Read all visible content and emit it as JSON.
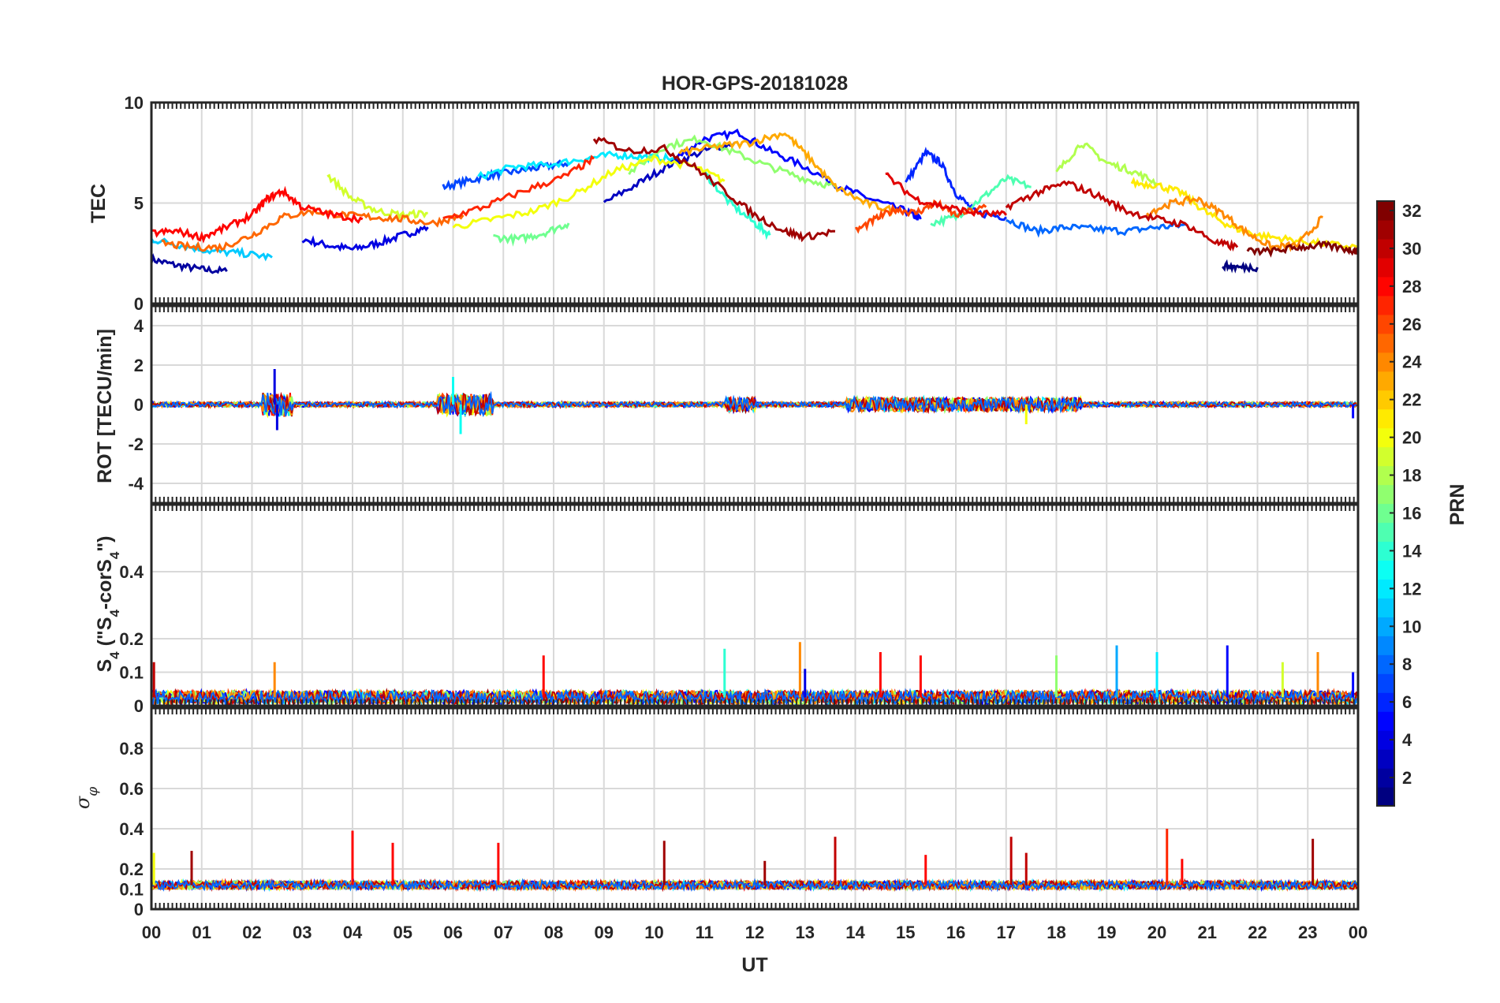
{
  "chart_data": {
    "title": "HOR-GPS-20181028",
    "xlabel": "UT",
    "x_ticks": [
      "00",
      "01",
      "02",
      "03",
      "04",
      "05",
      "06",
      "07",
      "08",
      "09",
      "10",
      "11",
      "12",
      "13",
      "14",
      "15",
      "16",
      "17",
      "18",
      "19",
      "20",
      "21",
      "22",
      "23",
      "00"
    ],
    "xlim": [
      0,
      24
    ],
    "grid": true,
    "colorbar": {
      "label": "PRN",
      "range": [
        1,
        32
      ],
      "ticks": [
        2,
        4,
        6,
        8,
        10,
        12,
        14,
        16,
        18,
        20,
        22,
        24,
        26,
        28,
        30,
        32
      ],
      "colormap": "jet"
    },
    "panels": [
      {
        "type": "line",
        "ylabel": "TEC",
        "ylim": [
          0,
          10
        ],
        "yticks": [
          0,
          5,
          10
        ],
        "series": [
          {
            "prn": 2,
            "x": [
              0,
              0.5,
              1,
              1.5
            ],
            "y": [
              2.2,
              1.9,
              1.7,
              1.6
            ]
          },
          {
            "prn": 4,
            "x": [
              3.0,
              3.5,
              4.0,
              4.5,
              5.0,
              5.5
            ],
            "y": [
              3.2,
              2.9,
              2.7,
              3.0,
              3.4,
              3.8
            ]
          },
          {
            "prn": 7,
            "x": [
              5.8,
              6.3,
              6.8,
              7.3,
              7.8,
              8.3
            ],
            "y": [
              5.8,
              6.1,
              6.4,
              6.6,
              6.8,
              7.0
            ]
          },
          {
            "prn": 5,
            "x": [
              10.3,
              11,
              11.7,
              12.3,
              13,
              13.7,
              14.3,
              15,
              15.3
            ],
            "y": [
              7.0,
              8.2,
              8.5,
              7.6,
              6.8,
              5.8,
              5.2,
              4.6,
              4.2
            ]
          },
          {
            "prn": 3,
            "x": [
              9.0,
              9.7,
              10.3,
              11.0,
              11.6
            ],
            "y": [
              5.0,
              6.0,
              6.9,
              7.6,
              8.0
            ]
          },
          {
            "prn": 6,
            "x": [
              15.0,
              15.4,
              15.7,
              16.0,
              16.4,
              17.0
            ],
            "y": [
              6.0,
              7.5,
              7.0,
              5.5,
              4.5,
              4.3
            ]
          },
          {
            "prn": 8,
            "x": [
              17.0,
              17.6,
              18.2,
              18.8,
              19.4,
              20.0,
              20.6
            ],
            "y": [
              4.2,
              3.6,
              3.8,
              3.7,
              3.6,
              3.8,
              3.9
            ]
          },
          {
            "prn": 11,
            "x": [
              0,
              0.6,
              1.2,
              1.8,
              2.4
            ],
            "y": [
              3.2,
              2.9,
              2.6,
              2.5,
              2.3
            ]
          },
          {
            "prn": 12,
            "x": [
              6.5,
              7.2,
              7.9,
              8.6,
              9.2,
              9.8,
              10.4
            ],
            "y": [
              6.3,
              6.8,
              6.9,
              7.2,
              7.4,
              7.3,
              7.2
            ]
          },
          {
            "prn": 14,
            "x": [
              11.0,
              11.5,
              12.0,
              12.3
            ],
            "y": [
              6.5,
              5.0,
              4.0,
              3.4
            ]
          },
          {
            "prn": 15,
            "x": [
              15.5,
              16.0,
              16.5,
              17.0,
              17.5
            ],
            "y": [
              4.0,
              4.3,
              5.2,
              6.2,
              5.8
            ]
          },
          {
            "prn": 16,
            "x": [
              6.8,
              7.3,
              7.8,
              8.3
            ],
            "y": [
              3.3,
              3.2,
              3.5,
              4.0
            ]
          },
          {
            "prn": 17,
            "x": [
              9.5,
              10.2,
              10.9,
              11.6,
              12.3,
              13.0,
              13.6
            ],
            "y": [
              6.5,
              7.8,
              8.2,
              7.5,
              6.8,
              6.2,
              5.8
            ]
          },
          {
            "prn": 18,
            "x": [
              18.0,
              18.5,
              19.0,
              19.5,
              20.0
            ],
            "y": [
              6.5,
              8.0,
              7.0,
              6.6,
              6.0
            ]
          },
          {
            "prn": 19,
            "x": [
              3.5,
              4.0,
              4.5,
              5.0,
              5.5
            ],
            "y": [
              6.4,
              5.2,
              4.6,
              4.4,
              4.5
            ]
          },
          {
            "prn": 20,
            "x": [
              6.0,
              6.8,
              7.6,
              8.4,
              9.2,
              10.0,
              10.8,
              11.4
            ],
            "y": [
              3.8,
              4.2,
              4.6,
              5.4,
              6.6,
              7.2,
              6.8,
              6.1
            ]
          },
          {
            "prn": 21,
            "x": [
              19.5,
              20.0,
              20.5,
              21.0,
              21.5,
              22.0,
              22.6,
              23.2,
              24.0
            ],
            "y": [
              6.0,
              5.9,
              5.5,
              4.5,
              3.8,
              3.4,
              3.2,
              3.0,
              2.8
            ]
          },
          {
            "prn": 23,
            "x": [
              10.5,
              11.2,
              11.9,
              12.6,
              13.1,
              13.6,
              14.2,
              14.8
            ],
            "y": [
              7.5,
              7.8,
              8.0,
              8.5,
              7.2,
              5.8,
              5.0,
              4.6
            ]
          },
          {
            "prn": 24,
            "x": [
              19.8,
              20.3,
              20.8,
              21.3,
              21.8,
              22.3,
              22.8,
              23.3
            ],
            "y": [
              4.5,
              5.0,
              5.2,
              4.5,
              3.5,
              2.8,
              2.9,
              4.3
            ]
          },
          {
            "prn": 25,
            "x": [
              0.2,
              0.8,
              1.4,
              2.0,
              2.6,
              3.2,
              3.8,
              4.4,
              5.0,
              5.6,
              6.2
            ],
            "y": [
              3.0,
              2.8,
              2.8,
              3.4,
              4.3,
              4.6,
              4.4,
              4.3,
              4.2,
              4.0,
              4.4
            ]
          },
          {
            "prn": 26,
            "x": [
              14.0,
              14.4,
              14.8,
              15.2,
              15.6,
              16.0,
              16.6
            ],
            "y": [
              3.6,
              4.2,
              4.7,
              4.5,
              5.0,
              4.4,
              4.8
            ]
          },
          {
            "prn": 27,
            "x": [
              5.8,
              6.6,
              7.4,
              8.2,
              8.8
            ],
            "y": [
              4.2,
              4.8,
              5.6,
              6.3,
              7.2
            ]
          },
          {
            "prn": 28,
            "x": [
              0,
              0.5,
              1.0,
              1.5,
              2.0,
              2.3,
              2.6,
              3.0,
              3.6,
              4.2
            ],
            "y": [
              3.5,
              3.6,
              3.3,
              3.8,
              4.4,
              5.2,
              5.6,
              4.8,
              4.4,
              4.2
            ]
          },
          {
            "prn": 29,
            "x": [
              14.6,
              15.2,
              15.8,
              16.4,
              17.0
            ],
            "y": [
              6.4,
              5.2,
              4.8,
              4.5,
              4.4
            ]
          },
          {
            "prn": 30,
            "x": [
              17.0,
              17.6,
              18.2,
              18.8,
              19.4,
              20.0,
              20.6,
              21.2,
              21.6
            ],
            "y": [
              4.8,
              5.5,
              6.0,
              5.4,
              4.6,
              4.2,
              3.9,
              3.0,
              2.8
            ]
          },
          {
            "prn": 31,
            "x": [
              8.8,
              9.5,
              10.2,
              10.8,
              11.4,
              12.0,
              12.6,
              13.0,
              13.6
            ],
            "y": [
              8.2,
              7.6,
              7.7,
              6.8,
              5.6,
              4.4,
              3.6,
              3.3,
              3.6
            ]
          },
          {
            "prn": 32,
            "x": [
              21.8,
              22.3,
              22.8,
              23.3,
              23.8,
              24.0
            ],
            "y": [
              2.6,
              2.6,
              2.8,
              2.9,
              2.7,
              2.6
            ]
          },
          {
            "prn": 1,
            "x": [
              21.3,
              21.6,
              22.0
            ],
            "y": [
              1.9,
              1.8,
              1.8
            ]
          }
        ]
      },
      {
        "type": "line",
        "ylabel": "ROT [TECU/min]",
        "ylim": [
          -5,
          5
        ],
        "yticks": [
          -4,
          -2,
          0,
          2,
          4
        ],
        "noise_bursts": [
          {
            "x": [
              2.2,
              2.8
            ],
            "amp": 1.0,
            "prn": 4
          },
          {
            "x": [
              5.7,
              6.8
            ],
            "amp": 0.9,
            "prn": 13
          },
          {
            "x": [
              11.4,
              12.0
            ],
            "amp": 0.6,
            "prn": 12
          },
          {
            "x": [
              13.8,
              18.5
            ],
            "amp": 0.6,
            "prn": 28
          },
          {
            "x": [
              17.0,
              18.0
            ],
            "amp": 0.6,
            "prn": 20
          }
        ],
        "spikes": [
          {
            "x": 2.45,
            "y": 1.8,
            "prn": 4
          },
          {
            "x": 2.5,
            "y": -1.3,
            "prn": 4
          },
          {
            "x": 6.15,
            "y": -1.5,
            "prn": 13
          },
          {
            "x": 6.0,
            "y": 1.4,
            "prn": 13
          },
          {
            "x": 17.4,
            "y": -1.0,
            "prn": 20
          },
          {
            "x": 23.9,
            "y": -0.7,
            "prn": 5
          }
        ]
      },
      {
        "type": "line",
        "ylabel": "S4 (\"S4-corS4\")",
        "ylim": [
          0,
          0.6
        ],
        "yticks": [
          0,
          0.1,
          0.2,
          0.4
        ],
        "spikes": [
          {
            "x": 0.05,
            "y": 0.13,
            "prn": 30
          },
          {
            "x": 2.45,
            "y": 0.13,
            "prn": 24
          },
          {
            "x": 7.8,
            "y": 0.15,
            "prn": 28
          },
          {
            "x": 11.4,
            "y": 0.17,
            "prn": 14
          },
          {
            "x": 12.9,
            "y": 0.19,
            "prn": 24
          },
          {
            "x": 13.0,
            "y": 0.11,
            "prn": 4
          },
          {
            "x": 14.5,
            "y": 0.16,
            "prn": 28
          },
          {
            "x": 15.3,
            "y": 0.15,
            "prn": 28
          },
          {
            "x": 18.0,
            "y": 0.15,
            "prn": 17
          },
          {
            "x": 19.2,
            "y": 0.18,
            "prn": 10
          },
          {
            "x": 20.0,
            "y": 0.16,
            "prn": 12
          },
          {
            "x": 21.4,
            "y": 0.18,
            "prn": 5
          },
          {
            "x": 22.5,
            "y": 0.13,
            "prn": 19
          },
          {
            "x": 23.2,
            "y": 0.16,
            "prn": 24
          },
          {
            "x": 23.9,
            "y": 0.1,
            "prn": 5
          }
        ]
      },
      {
        "type": "line",
        "ylabel": "σφ",
        "ylim": [
          0,
          1
        ],
        "yticks": [
          0,
          0.1,
          0.2,
          0.4,
          0.6,
          0.8
        ],
        "spikes": [
          {
            "x": 0.8,
            "y": 0.29,
            "prn": 31
          },
          {
            "x": 4.0,
            "y": 0.39,
            "prn": 28
          },
          {
            "x": 4.8,
            "y": 0.33,
            "prn": 28
          },
          {
            "x": 6.9,
            "y": 0.33,
            "prn": 28
          },
          {
            "x": 10.2,
            "y": 0.34,
            "prn": 31
          },
          {
            "x": 12.2,
            "y": 0.24,
            "prn": 31
          },
          {
            "x": 13.6,
            "y": 0.36,
            "prn": 30
          },
          {
            "x": 15.4,
            "y": 0.27,
            "prn": 28
          },
          {
            "x": 17.1,
            "y": 0.36,
            "prn": 30
          },
          {
            "x": 17.4,
            "y": 0.28,
            "prn": 30
          },
          {
            "x": 20.2,
            "y": 0.4,
            "prn": 27
          },
          {
            "x": 20.5,
            "y": 0.25,
            "prn": 28
          },
          {
            "x": 23.1,
            "y": 0.35,
            "prn": 31
          },
          {
            "x": 0.05,
            "y": 0.28,
            "prn": 20
          }
        ]
      }
    ]
  }
}
